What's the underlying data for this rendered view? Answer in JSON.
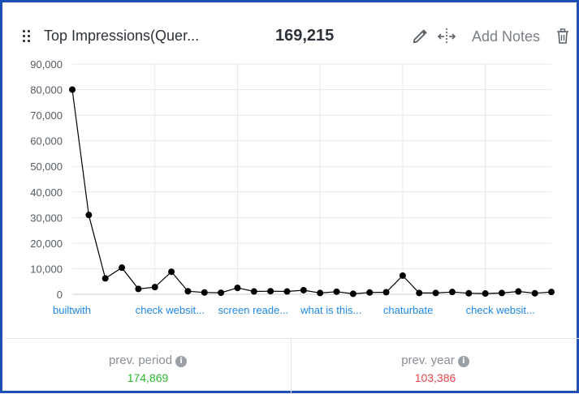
{
  "widget": {
    "title": "Top Impressions(Quer...",
    "total": "169,215",
    "add_notes_label": "Add Notes",
    "icons": [
      "drag-handle-icon",
      "pencil-icon",
      "move-icon",
      "trash-icon"
    ]
  },
  "chart_data": {
    "type": "line",
    "xlabel": "",
    "ylabel": "",
    "ylim": [
      0,
      90000
    ],
    "yticks": [
      "0",
      "10,000",
      "20,000",
      "30,000",
      "40,000",
      "50,000",
      "60,000",
      "70,000",
      "80,000",
      "90,000"
    ],
    "category_labels": [
      "builtwith",
      "check websit...",
      "screen reade...",
      "what is this...",
      "chaturbate",
      "check websit..."
    ],
    "category_label_index": [
      0,
      5,
      10,
      15,
      20,
      25
    ],
    "grid": true,
    "color": "#000000",
    "link_color": "#1e88e5",
    "values": [
      80000,
      31000,
      6200,
      10400,
      2100,
      2800,
      8800,
      1200,
      700,
      600,
      2500,
      1100,
      1200,
      1100,
      1600,
      500,
      1000,
      200,
      700,
      800,
      7300,
      500,
      500,
      900,
      400,
      300,
      500,
      1100,
      400,
      900
    ]
  },
  "footer": {
    "prev_period": {
      "label": "prev. period",
      "value": "174,869"
    },
    "prev_year": {
      "label": "prev. year",
      "value": "103,386"
    },
    "info_glyph": "i"
  }
}
